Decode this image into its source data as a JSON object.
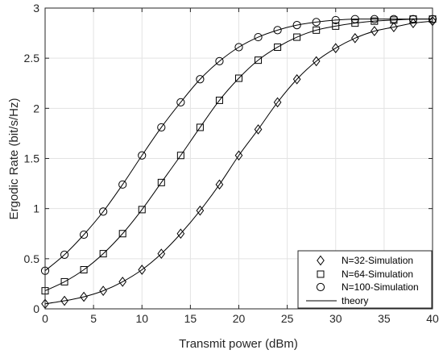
{
  "chart_data": {
    "type": "line",
    "xlabel": "Transmit power (dBm)",
    "ylabel": "Ergodic Rate (bit/s/Hz)",
    "xlim": [
      0,
      40
    ],
    "ylim": [
      0,
      3
    ],
    "xticks": [
      0,
      5,
      10,
      15,
      20,
      25,
      30,
      35,
      40
    ],
    "yticks": [
      0,
      0.5,
      1,
      1.5,
      2,
      2.5,
      3
    ],
    "xtick_labels": [
      "0",
      "5",
      "10",
      "15",
      "20",
      "25",
      "30",
      "35",
      "40"
    ],
    "ytick_labels": [
      "0",
      "0.5",
      "1",
      "1.5",
      "2",
      "2.5",
      "3"
    ],
    "grid": true,
    "legend_position": "bottom-right",
    "x": [
      0,
      2,
      4,
      6,
      8,
      10,
      12,
      14,
      16,
      18,
      20,
      22,
      24,
      26,
      28,
      30,
      32,
      34,
      36,
      38,
      40
    ],
    "series": [
      {
        "name": "N=32-Simulation",
        "marker": "diamond",
        "values": [
          0.05,
          0.08,
          0.12,
          0.18,
          0.27,
          0.39,
          0.55,
          0.75,
          0.98,
          1.24,
          1.53,
          1.79,
          2.06,
          2.29,
          2.47,
          2.6,
          2.7,
          2.77,
          2.81,
          2.85,
          2.87
        ]
      },
      {
        "name": "N=64-Simulation",
        "marker": "square",
        "values": [
          0.18,
          0.27,
          0.39,
          0.55,
          0.75,
          0.99,
          1.26,
          1.53,
          1.81,
          2.08,
          2.3,
          2.48,
          2.61,
          2.71,
          2.78,
          2.82,
          2.85,
          2.87,
          2.88,
          2.89,
          2.89
        ]
      },
      {
        "name": "N=100-Simulation",
        "marker": "circle",
        "values": [
          0.38,
          0.54,
          0.74,
          0.97,
          1.24,
          1.53,
          1.81,
          2.06,
          2.29,
          2.47,
          2.61,
          2.71,
          2.78,
          2.83,
          2.86,
          2.88,
          2.89,
          2.89,
          2.89,
          2.89,
          2.89
        ]
      }
    ],
    "theory_legend": "theory"
  }
}
